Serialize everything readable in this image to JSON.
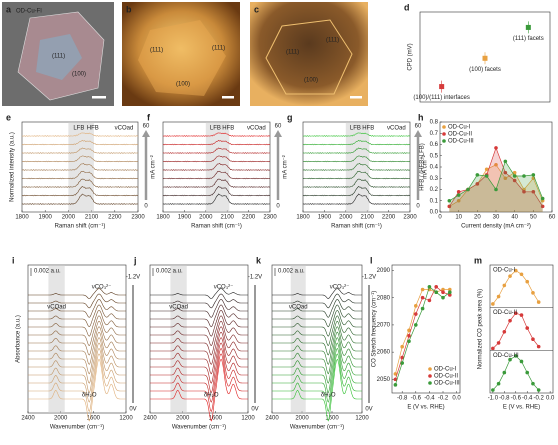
{
  "chart_data": [
    {
      "type": "image",
      "panel_label": "a",
      "title": "OD-Cu-Fl",
      "annotations": [
        "(111)",
        "(100)"
      ]
    },
    {
      "type": "image",
      "panel_label": "b",
      "annotations": [
        "(111)",
        "(100)",
        "(111)"
      ]
    },
    {
      "type": "image",
      "panel_label": "c",
      "annotations": [
        "(111)",
        "(111)",
        "(100)"
      ]
    },
    {
      "type": "scatter",
      "panel_label": "d",
      "ylabel": "CPD (mV)",
      "categories": [
        "(100)/(111) interfaces",
        "(100) facets",
        "(111) facets"
      ],
      "values": [
        410,
        520,
        640
      ],
      "colors": [
        "#d63a3a",
        "#e8a040",
        "#3a9a3a"
      ],
      "ylim": [
        350,
        700
      ]
    },
    {
      "type": "spectra",
      "panel_label": "e",
      "xlabel": "Raman shift (cm⁻¹)",
      "ylabel": "Normalized intensity (a.u.)",
      "xlim": [
        1800,
        2300
      ],
      "xticks": [
        1800,
        1900,
        2000,
        2100,
        2200,
        2300
      ],
      "annotations": [
        "LFB",
        "HFB",
        "νCOad"
      ],
      "arrow_label": "mA cm⁻²",
      "arrow_range": [
        0,
        60
      ],
      "colors": [
        "#e0b07a",
        "#5a3a1e"
      ]
    },
    {
      "type": "spectra",
      "panel_label": "f",
      "xlabel": "Raman shift (cm⁻¹)",
      "xlim": [
        1800,
        2300
      ],
      "xticks": [
        1800,
        1900,
        2000,
        2100,
        2200,
        2300
      ],
      "annotations": [
        "LFB",
        "HFB",
        "νCOad"
      ],
      "arrow_label": "mA cm⁻²",
      "arrow_range": [
        0,
        60
      ],
      "colors": [
        "#e02020",
        "#222222"
      ]
    },
    {
      "type": "spectra",
      "panel_label": "g",
      "xlabel": "Raman shift (cm⁻¹)",
      "xlim": [
        1800,
        2300
      ],
      "xticks": [
        1800,
        1900,
        2000,
        2100,
        2200,
        2300
      ],
      "annotations": [
        "LFB",
        "HFB",
        "νCOad"
      ],
      "arrow_label": "mA cm⁻²",
      "arrow_range": [
        0,
        60
      ],
      "colors": [
        "#30c030",
        "#222222"
      ]
    },
    {
      "type": "line",
      "panel_label": "h",
      "xlabel": "Current density (mA cm⁻²)",
      "ylabel": "HFB / (HFB+LFB)",
      "fill": true,
      "x": [
        5,
        10,
        15,
        20,
        25,
        30,
        35,
        40,
        45,
        50,
        55
      ],
      "series": [
        {
          "name": "OD-Cu-I",
          "color": "#e8a040",
          "values": [
            0.05,
            0.1,
            0.2,
            0.25,
            0.38,
            0.42,
            0.3,
            0.35,
            0.2,
            0.3,
            0.1
          ]
        },
        {
          "name": "OD-Cu-II",
          "color": "#d63a3a",
          "values": [
            0.05,
            0.18,
            0.2,
            0.25,
            0.33,
            0.57,
            0.35,
            0.28,
            0.18,
            0.18,
            0.05
          ]
        },
        {
          "name": "OD-Cu-III",
          "color": "#3a9a3a",
          "values": [
            0.1,
            0.15,
            0.2,
            0.33,
            0.32,
            0.2,
            0.45,
            0.32,
            0.32,
            0.33,
            0.12
          ]
        }
      ],
      "xlim": [
        0,
        60
      ],
      "xticks": [
        0,
        10,
        20,
        30,
        40,
        50,
        60
      ],
      "ylim": [
        0,
        0.8
      ],
      "yticks": [
        {
          "value": 0,
          "label": "0.0"
        },
        0.1,
        0.2,
        0.3,
        0.4,
        0.5,
        0.6,
        0.7,
        0.8
      ]
    },
    {
      "type": "absorbance",
      "panel_label": "i",
      "xlabel": "Wavenumber (cm⁻¹)",
      "ylabel": "Absorbance (a.u.)",
      "xlim": [
        2400,
        1200
      ],
      "xticks": [
        2400,
        2000,
        1600,
        1200
      ],
      "scale_label": "0.002 a.u.",
      "annotations": [
        "νCOad",
        "νCO₃²⁻",
        "δH₂O"
      ],
      "potentials": [
        "-1.2V",
        "0V"
      ],
      "colors": [
        "#e0b07a",
        "#5a3a1e"
      ]
    },
    {
      "type": "absorbance",
      "panel_label": "j",
      "xlabel": "Wavenumber (cm⁻¹)",
      "xlim": [
        2400,
        1200
      ],
      "xticks": [
        2400,
        2000,
        1600,
        1200
      ],
      "scale_label": "0.002 a.u.",
      "annotations": [
        "νCOad",
        "νCO₃²⁻",
        "δH₂O"
      ],
      "potentials": [
        "-1.2V",
        "0V"
      ],
      "colors": [
        "#e02020",
        "#222222"
      ]
    },
    {
      "type": "absorbance",
      "panel_label": "k",
      "xlabel": "Wavenumber (cm⁻¹)",
      "xlim": [
        2400,
        1200
      ],
      "xticks": [
        2400,
        2000,
        1600,
        1200
      ],
      "scale_label": "0.002 a.u.",
      "annotations": [
        "νCOad",
        "νCO₃²⁻",
        "δH₂O"
      ],
      "potentials": [
        "-1.2V",
        "0V"
      ],
      "colors": [
        "#30c030",
        "#222222"
      ]
    },
    {
      "type": "line",
      "panel_label": "l",
      "xlabel": "E (V vs. RHE)",
      "ylabel": "CO Stretch frequency (cm⁻¹)",
      "x": [
        -0.9,
        -0.8,
        -0.7,
        -0.6,
        -0.5,
        -0.4,
        -0.3,
        -0.2,
        -0.1
      ],
      "series": [
        {
          "name": "OD-Cu-I",
          "color": "#e8a040",
          "values": [
            2052,
            2062,
            2068,
            2077,
            2083,
            2083,
            2082,
            2083,
            2083
          ]
        },
        {
          "name": "OD-Cu-II",
          "color": "#d63a3a",
          "values": [
            2050,
            2058,
            2066,
            2074,
            2080,
            2079,
            2084,
            2082,
            2081
          ]
        },
        {
          "name": "OD-Cu-III",
          "color": "#3a9a3a",
          "values": [
            2048,
            2056,
            2064,
            2070,
            2076,
            2084,
            2082,
            2080,
            2082
          ]
        }
      ],
      "xlim": [
        -0.95,
        0.05
      ],
      "xticks": [
        -0.8,
        -0.6,
        -0.4,
        -0.2,
        {
          "value": 0,
          "label": "0.0"
        }
      ],
      "ylim": [
        2045,
        2092
      ],
      "yticks": [
        2050,
        2060,
        2070,
        2080,
        2090
      ]
    },
    {
      "type": "line",
      "panel_label": "m",
      "xlabel": "E (V vs. RHE)",
      "ylabel": "Normalized CO peak area (%)",
      "separate_panels": true,
      "x": [
        -1.0,
        -0.9,
        -0.8,
        -0.7,
        -0.6,
        -0.5,
        -0.4,
        -0.3,
        -0.2
      ],
      "series": [
        {
          "name": "OD-Cu-I",
          "color": "#e8a040",
          "values": [
            10,
            30,
            60,
            85,
            100,
            90,
            70,
            40,
            15
          ]
        },
        {
          "name": "OD-Cu-II",
          "color": "#d63a3a",
          "values": [
            5,
            20,
            50,
            80,
            100,
            95,
            60,
            30,
            10
          ]
        },
        {
          "name": "OD-Cu-III",
          "color": "#3a9a3a",
          "values": [
            8,
            25,
            55,
            90,
            100,
            85,
            55,
            25,
            8
          ]
        }
      ],
      "xlim": [
        -1.05,
        0.05
      ],
      "xticks": [
        {
          "value": -1,
          "label": "-1.0"
        },
        -0.8,
        -0.6,
        -0.4,
        -0.2,
        {
          "value": 0,
          "label": "0.0"
        }
      ],
      "ylim": [
        0,
        115
      ]
    }
  ]
}
